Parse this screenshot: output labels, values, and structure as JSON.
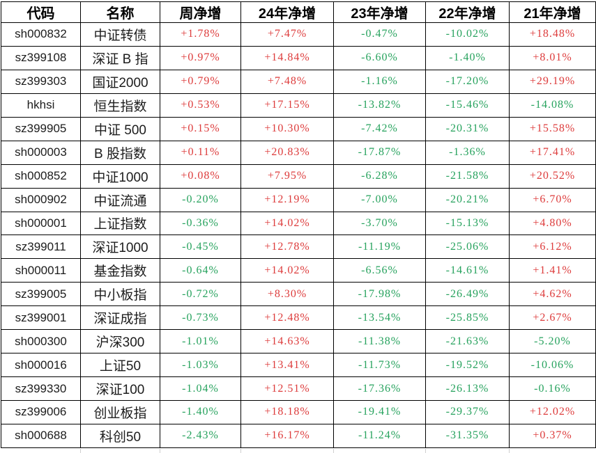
{
  "colors": {
    "up": "#dd3b3b",
    "down": "#26a25d",
    "border": "#000000",
    "header_text": "#000000",
    "cell_text": "#1c1c1c",
    "background": "#ffffff"
  },
  "chart_data": {
    "type": "table",
    "title": "",
    "columns": [
      "代码",
      "名称",
      "周净增",
      "24年净增",
      "23年净增",
      "22年净增",
      "21年净增"
    ],
    "rows": [
      [
        "sh000832",
        "中证转债",
        "+1.78%",
        "+7.47%",
        "-0.47%",
        "-10.02%",
        "+18.48%"
      ],
      [
        "sz399108",
        "深证 B 指",
        "+0.97%",
        "+14.84%",
        "-6.60%",
        "-1.40%",
        "+8.01%"
      ],
      [
        "sz399303",
        "国证2000",
        "+0.79%",
        "+7.48%",
        "-1.16%",
        "-17.20%",
        "+29.19%"
      ],
      [
        "hkhsi",
        "恒生指数",
        "+0.53%",
        "+17.15%",
        "-13.82%",
        "-15.46%",
        "-14.08%"
      ],
      [
        "sz399905",
        "中证 500",
        "+0.15%",
        "+10.30%",
        "-7.42%",
        "-20.31%",
        "+15.58%"
      ],
      [
        "sh000003",
        "B 股指数",
        "+0.11%",
        "+20.83%",
        "-17.87%",
        "-1.36%",
        "+17.41%"
      ],
      [
        "sh000852",
        "中证1000",
        "+0.08%",
        "+7.95%",
        "-6.28%",
        "-21.58%",
        "+20.52%"
      ],
      [
        "sh000902",
        "中证流通",
        "-0.20%",
        "+12.19%",
        "-7.00%",
        "-20.21%",
        "+6.70%"
      ],
      [
        "sh000001",
        "上证指数",
        "-0.36%",
        "+14.02%",
        "-3.70%",
        "-15.13%",
        "+4.80%"
      ],
      [
        "sz399011",
        "深证1000",
        "-0.45%",
        "+12.78%",
        "-11.19%",
        "-25.06%",
        "+6.12%"
      ],
      [
        "sh000011",
        "基金指数",
        "-0.64%",
        "+14.02%",
        "-6.56%",
        "-14.61%",
        "+1.41%"
      ],
      [
        "sz399005",
        "中小板指",
        "-0.72%",
        "+8.30%",
        "-17.98%",
        "-26.49%",
        "+4.62%"
      ],
      [
        "sz399001",
        "深证成指",
        "-0.73%",
        "+12.48%",
        "-13.54%",
        "-25.85%",
        "+2.67%"
      ],
      [
        "sh000300",
        "沪深300",
        "-1.01%",
        "+14.63%",
        "-11.38%",
        "-21.63%",
        "-5.20%"
      ],
      [
        "sh000016",
        "上证50",
        "-1.03%",
        "+13.41%",
        "-11.73%",
        "-19.52%",
        "-10.06%"
      ],
      [
        "sz399330",
        "深证100",
        "-1.04%",
        "+12.51%",
        "-17.36%",
        "-26.13%",
        "-0.16%"
      ],
      [
        "sz399006",
        "创业板指",
        "-1.40%",
        "+18.18%",
        "-19.41%",
        "-29.37%",
        "+12.02%"
      ],
      [
        "sh000688",
        "科创50",
        "-2.43%",
        "+16.17%",
        "-11.24%",
        "-31.35%",
        "+0.37%"
      ]
    ]
  }
}
